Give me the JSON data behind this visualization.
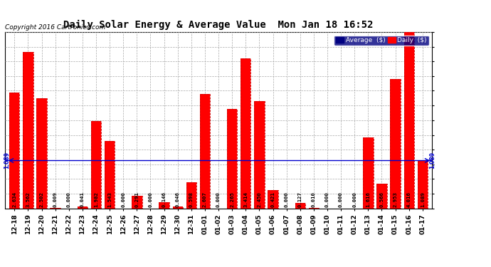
{
  "title": "Daily Solar Energy & Average Value  Mon Jan 18 16:52",
  "copyright": "Copyright 2016 Cartronics.com",
  "categories": [
    "12-18",
    "12-19",
    "12-20",
    "12-21",
    "12-22",
    "12-23",
    "12-24",
    "12-25",
    "12-26",
    "12-27",
    "12-28",
    "12-29",
    "12-30",
    "12-31",
    "01-01",
    "01-02",
    "01-03",
    "01-04",
    "01-05",
    "01-06",
    "01-07",
    "01-08",
    "01-09",
    "01-10",
    "01-11",
    "01-12",
    "01-13",
    "01-14",
    "01-15",
    "01-16",
    "01-17"
  ],
  "values": [
    2.634,
    3.562,
    2.502,
    0.009,
    0.0,
    0.041,
    1.982,
    1.543,
    0.0,
    0.291,
    0.0,
    0.146,
    0.046,
    0.598,
    2.607,
    0.0,
    2.265,
    3.414,
    2.45,
    0.421,
    0.0,
    0.127,
    0.01,
    0.0,
    0.0,
    0.0,
    1.616,
    0.566,
    2.953,
    4.016,
    1.089
  ],
  "average": 1.089,
  "bar_color": "#FF0000",
  "avg_line_color": "#0000CC",
  "background_color": "#FFFFFF",
  "plot_bg_color": "#FFFFFF",
  "grid_color": "#AAAAAA",
  "ylim": [
    0.0,
    4.02
  ],
  "yticks": [
    0.0,
    0.33,
    0.67,
    1.0,
    1.34,
    1.67,
    2.01,
    2.34,
    2.68,
    3.01,
    3.35,
    3.68,
    4.02
  ],
  "legend_avg_label": "Average  ($)",
  "legend_daily_label": "Daily  ($)",
  "avg_label": "1.089",
  "value_label_color": "#000000",
  "title_fontsize": 10,
  "legend_bg_color": "#000080",
  "legend_text_color": "#FFFFFF"
}
